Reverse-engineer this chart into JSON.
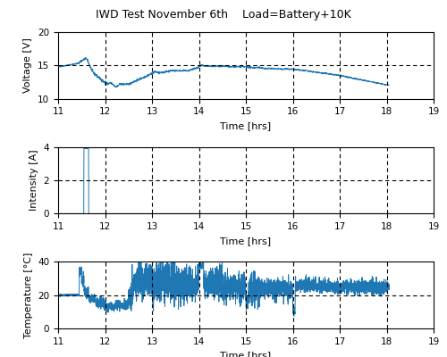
{
  "title": "IWD Test November 6th    Load=Battery+10K",
  "xlim": [
    11,
    19
  ],
  "xticks": [
    11,
    12,
    13,
    14,
    15,
    16,
    17,
    18,
    19
  ],
  "xlabel": "Time [hrs]",
  "line_color": "#1f77b4",
  "line_width": 0.7,
  "voltage": {
    "ylabel": "Voltage [V]",
    "ylim": [
      10,
      20
    ],
    "yticks": [
      10,
      15,
      20
    ],
    "dashed_y": 15
  },
  "intensity": {
    "ylabel": "Intensity [A]",
    "ylim": [
      0,
      4
    ],
    "yticks": [
      0,
      2,
      4
    ],
    "dashed_y": 2
  },
  "temperature": {
    "ylabel": "Temperature [°C]",
    "ylim": [
      0,
      40
    ],
    "yticks": [
      0,
      20,
      40
    ],
    "dashed_y": 20
  },
  "vdash_x": [
    12,
    13,
    14,
    15,
    16,
    17,
    18
  ],
  "background_color": "#ffffff",
  "figsize": [
    5.0,
    4.0
  ],
  "dpi": 100,
  "title_fontsize": 9,
  "label_fontsize": 8,
  "tick_fontsize": 7.5
}
